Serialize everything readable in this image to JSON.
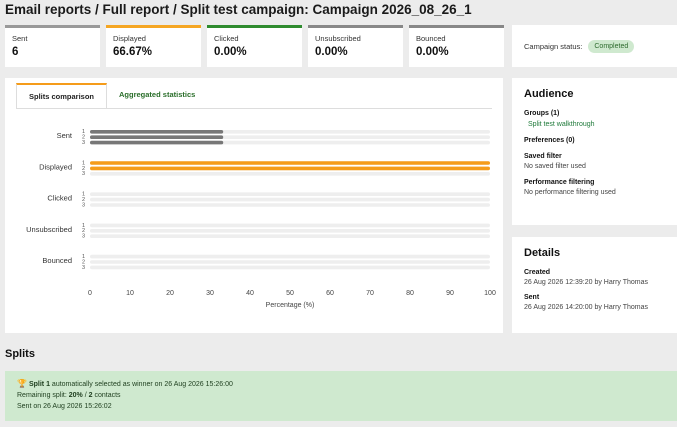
{
  "header": {
    "title": "Email reports / Full report / Split test campaign: Campaign 2026_08_26_1"
  },
  "stats": [
    {
      "label": "Sent",
      "value": "6",
      "color": "#999999"
    },
    {
      "label": "Displayed",
      "value": "66.67%",
      "color": "#f5a623"
    },
    {
      "label": "Clicked",
      "value": "0.00%",
      "color": "#2e8b2e"
    },
    {
      "label": "Unsubscribed",
      "value": "0.00%",
      "color": "#888888"
    },
    {
      "label": "Bounced",
      "value": "0.00%",
      "color": "#888888"
    }
  ],
  "status": {
    "label": "Campaign status:",
    "badge": "Completed"
  },
  "tabs": [
    {
      "label": "Splits comparison",
      "active": true
    },
    {
      "label": "Aggregated statistics",
      "active": false
    }
  ],
  "chart_data": {
    "type": "bar",
    "orientation": "horizontal",
    "categories": [
      "Sent",
      "Displayed",
      "Clicked",
      "Unsubscribed",
      "Bounced"
    ],
    "series": [
      {
        "name": "1",
        "values": [
          33.3,
          100,
          0,
          0,
          0
        ]
      },
      {
        "name": "2",
        "values": [
          33.3,
          100,
          0,
          0,
          0
        ]
      },
      {
        "name": "3",
        "values": [
          33.3,
          0,
          0,
          0,
          0
        ]
      }
    ],
    "colors": {
      "Sent": "#777777",
      "Displayed": "#f59c1a",
      "track": "#eeeeee"
    },
    "xlabel": "Percentage (%)",
    "ylabel": "",
    "xlim": [
      0,
      100
    ],
    "xticks": [
      0,
      10,
      20,
      30,
      40,
      50,
      60,
      70,
      80,
      90,
      100
    ]
  },
  "audience": {
    "title": "Audience",
    "groups_label": "Groups (1)",
    "group_link": "Split test walkthrough",
    "preferences_label": "Preferences (0)",
    "saved_filter_label": "Saved filter",
    "saved_filter_value": "No saved filter used",
    "performance_label": "Performance filtering",
    "performance_value": "No performance filtering used"
  },
  "details": {
    "title": "Details",
    "created_label": "Created",
    "created_value": "26 Aug 2026 12:39:20 by Harry Thomas",
    "sent_label": "Sent",
    "sent_value": "26 Aug 2026 14:20:00 by Harry Thomas"
  },
  "splits": {
    "title": "Splits",
    "winner_name": "Split 1",
    "winner_text": "automatically selected as winner on 26 Aug 2026 15:26:00",
    "remaining_label": "Remaining split:",
    "remaining_pct": "20%",
    "remaining_sep": " / ",
    "remaining_count": "2",
    "remaining_unit": " contacts",
    "sent_on": "Sent on 26 Aug 2026 15:26:02"
  }
}
